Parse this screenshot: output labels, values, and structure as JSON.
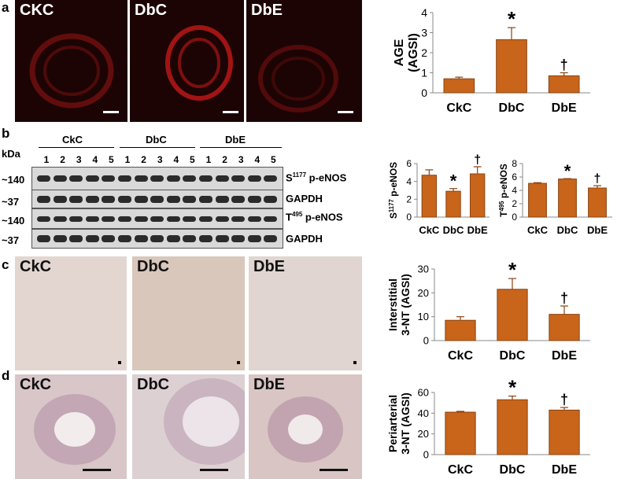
{
  "panels": {
    "a": {
      "letter": "a",
      "images": [
        "CKC",
        "DbC",
        "DbE"
      ]
    },
    "b": {
      "letter": "b",
      "kda_label": "kDa",
      "groups": [
        "CkC",
        "DbC",
        "DbE"
      ],
      "lanes": [
        "1",
        "2",
        "3",
        "4",
        "5",
        "1",
        "2",
        "3",
        "4",
        "5",
        "1",
        "2",
        "3",
        "4",
        "5"
      ],
      "rows": [
        {
          "mw": "~140",
          "label_main": "S",
          "label_sup": "1177",
          "label_rest": " p-eNOS"
        },
        {
          "mw": "~37",
          "label_main": "GAPDH",
          "label_sup": "",
          "label_rest": ""
        },
        {
          "mw": "~140",
          "label_main": "T",
          "label_sup": "495",
          "label_rest": " p-eNOS"
        },
        {
          "mw": "~37",
          "label_main": "GAPDH",
          "label_sup": "",
          "label_rest": ""
        }
      ]
    },
    "c": {
      "letter": "c",
      "images": [
        "CkC",
        "DbC",
        "DbE"
      ]
    },
    "d": {
      "letter": "d",
      "images": [
        "CkC",
        "DbC",
        "DbE"
      ]
    }
  },
  "colors": {
    "bar_fill": "#c8651b",
    "bar_stroke": "#8a4310",
    "fluor_red": "#8f1414",
    "ihc_bg": "#ddd1cc"
  },
  "chart_data": [
    {
      "id": "age",
      "type": "bar",
      "categories": [
        "CkC",
        "DbC",
        "DbE"
      ],
      "values": [
        0.7,
        2.65,
        0.85
      ],
      "errors": [
        0.08,
        0.6,
        0.15
      ],
      "annotations": [
        "",
        "*",
        "†"
      ],
      "ylabel_lines": [
        "AGE",
        "(AGSI)"
      ],
      "ylim": [
        0,
        4
      ],
      "yticks": [
        "0",
        "1",
        "2",
        "3",
        "4"
      ]
    },
    {
      "id": "s1177",
      "type": "bar",
      "categories": [
        "CkC",
        "DbC",
        "DbE"
      ],
      "values": [
        4.7,
        2.9,
        4.85
      ],
      "errors": [
        0.6,
        0.3,
        0.8
      ],
      "annotations": [
        "",
        "*",
        "†"
      ],
      "ylabel_main": "S",
      "ylabel_sup": "1177",
      "ylabel_rest": " p-eNOS",
      "ylim": [
        0,
        6
      ],
      "yticks": [
        "0",
        "2",
        "4",
        "6"
      ]
    },
    {
      "id": "t495",
      "type": "bar",
      "categories": [
        "CkC",
        "DbC",
        "DbE"
      ],
      "values": [
        5.05,
        5.7,
        4.35
      ],
      "errors": [
        0.1,
        0.05,
        0.35
      ],
      "annotations": [
        "",
        "*",
        "†"
      ],
      "ylabel_main": "T",
      "ylabel_sup": "495",
      "ylabel_rest": " p-eNOS",
      "ylim": [
        0,
        8
      ],
      "yticks": [
        "0",
        "2",
        "4",
        "6",
        "8"
      ]
    },
    {
      "id": "interstitial",
      "type": "bar",
      "categories": [
        "CkC",
        "DbC",
        "DbE"
      ],
      "values": [
        8.5,
        21.5,
        11.0
      ],
      "errors": [
        1.5,
        4.5,
        3.5
      ],
      "annotations": [
        "",
        "*",
        "†"
      ],
      "ylabel_lines": [
        "Interstitial",
        "3-NT (AGSI)"
      ],
      "ylim": [
        0,
        30
      ],
      "yticks": [
        "0",
        "10",
        "20",
        "30"
      ]
    },
    {
      "id": "periarterial",
      "type": "bar",
      "categories": [
        "CkC",
        "DbC",
        "DbE"
      ],
      "values": [
        41,
        53,
        43
      ],
      "errors": [
        0.8,
        3.5,
        2.5
      ],
      "annotations": [
        "",
        "*",
        "†"
      ],
      "ylabel_lines": [
        "Periarterial",
        "3-NT (AGSI)"
      ],
      "ylim": [
        0,
        60
      ],
      "yticks": [
        "0",
        "20",
        "40",
        "60"
      ]
    }
  ]
}
